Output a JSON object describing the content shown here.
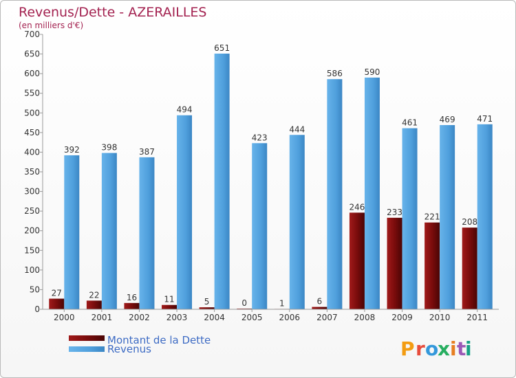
{
  "chart_data": {
    "type": "bar",
    "title": "Revenus/Dette - AZERAILLES",
    "subtitle": "(en milliers d'€)",
    "categories": [
      "2000",
      "2001",
      "2002",
      "2003",
      "2004",
      "2005",
      "2006",
      "2007",
      "2008",
      "2009",
      "2010",
      "2011"
    ],
    "series": [
      {
        "name": "Montant de la Dette",
        "color": "#7a0c0c",
        "values": [
          27,
          22,
          16,
          11,
          5,
          0,
          1,
          6,
          246,
          233,
          221,
          208
        ]
      },
      {
        "name": "Revenus",
        "color": "#4f9fdc",
        "values": [
          392,
          398,
          387,
          494,
          651,
          423,
          444,
          586,
          590,
          461,
          469,
          471
        ]
      }
    ],
    "ylim": [
      0,
      700
    ],
    "yticks": [
      0,
      50,
      100,
      150,
      200,
      250,
      300,
      350,
      400,
      450,
      500,
      550,
      600,
      650,
      700
    ],
    "grid": false,
    "legend_position": "bottom-left"
  },
  "brand": {
    "logo_text": "Proxiti",
    "colors": [
      "#f39c12",
      "#e74c3c",
      "#3498db",
      "#27ae60",
      "#e67e22",
      "#9b59b6",
      "#16a085"
    ]
  }
}
